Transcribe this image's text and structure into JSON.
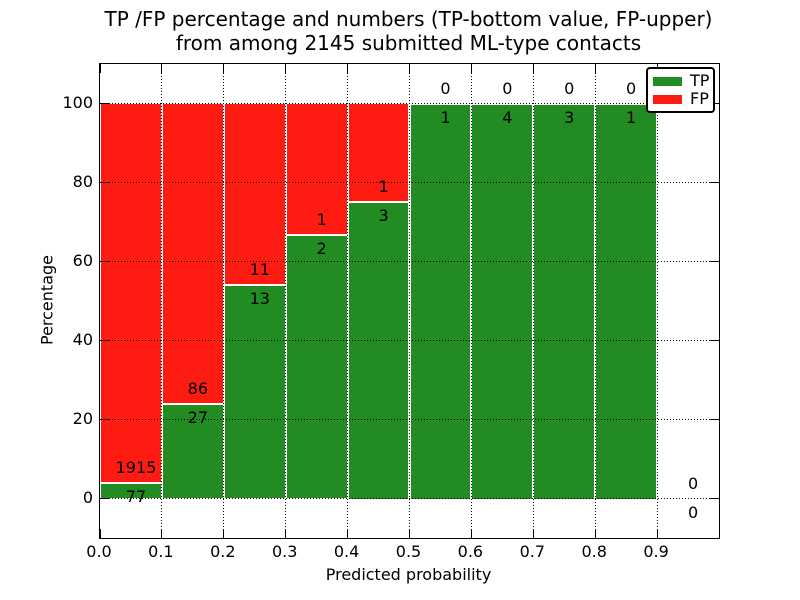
{
  "chart_data": {
    "type": "bar",
    "stacked": true,
    "title_line1": "TP /FP percentage and numbers (TP-bottom value, FP-upper)",
    "title_line2": "from among 2145 submitted ML-type contacts",
    "xlabel": "Predicted probability",
    "ylabel": "Percentage",
    "x_tick_labels": [
      "0.0",
      "0.1",
      "0.2",
      "0.3",
      "0.4",
      "0.5",
      "0.6",
      "0.7",
      "0.8",
      "0.9"
    ],
    "y_tick_values": [
      0,
      20,
      40,
      60,
      80,
      100
    ],
    "xlim": [
      0.0,
      1.0
    ],
    "ylim": [
      -10,
      110
    ],
    "grid": "dotted-both-axes",
    "note": "stacked percentage bars; TP count shown below segment boundary, FP count above",
    "legend": {
      "position": "upper-right",
      "entries": [
        {
          "label": "TP",
          "color": "#228b22"
        },
        {
          "label": "FP",
          "color": "#fd1b12"
        }
      ]
    },
    "bins": [
      {
        "range": "0.0-0.1",
        "tp": 77,
        "fp": 1915
      },
      {
        "range": "0.1-0.2",
        "tp": 27,
        "fp": 86
      },
      {
        "range": "0.2-0.3",
        "tp": 13,
        "fp": 11
      },
      {
        "range": "0.3-0.4",
        "tp": 2,
        "fp": 1
      },
      {
        "range": "0.4-0.5",
        "tp": 3,
        "fp": 1
      },
      {
        "range": "0.5-0.6",
        "tp": 1,
        "fp": 0
      },
      {
        "range": "0.6-0.7",
        "tp": 4,
        "fp": 0
      },
      {
        "range": "0.7-0.8",
        "tp": 3,
        "fp": 0
      },
      {
        "range": "0.8-0.9",
        "tp": 1,
        "fp": 0
      },
      {
        "range": "0.9-1.0",
        "tp": 0,
        "fp": 0
      }
    ],
    "colors": {
      "tp": "#228b22",
      "fp": "#fd1b12",
      "axis": "#000000"
    }
  }
}
